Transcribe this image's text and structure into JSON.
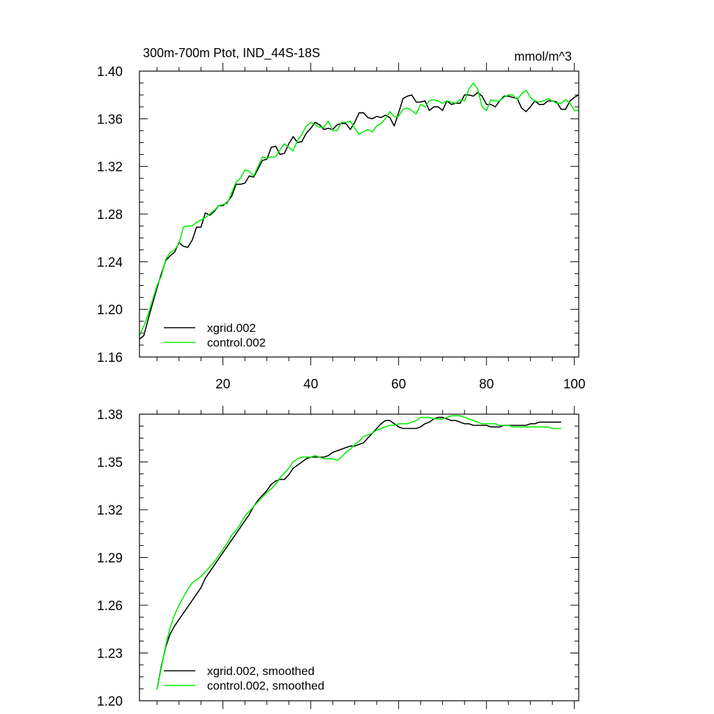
{
  "chart_data": [
    {
      "type": "line",
      "title": "300m-700m Ptot, IND_44S-18S",
      "units": "mmol/m^3",
      "xlabel": "",
      "ylabel": "",
      "xlim": [
        1,
        101
      ],
      "ylim": [
        1.16,
        1.4
      ],
      "xticks": [
        20,
        40,
        60,
        80,
        100
      ],
      "xtick_labels": [
        "20",
        "40",
        "60",
        "80",
        "100"
      ],
      "yticks": [
        1.16,
        1.2,
        1.24,
        1.28,
        1.32,
        1.36,
        1.4
      ],
      "ytick_labels": [
        "1.16",
        "1.20",
        "1.24",
        "1.28",
        "1.32",
        "1.36",
        "1.40"
      ],
      "grid": false,
      "legend_position": "bottom-left",
      "series": [
        {
          "name": "xgrid.002",
          "color": "#000000",
          "x": [
            1,
            2,
            3,
            4,
            5,
            6,
            7,
            8,
            9,
            10,
            11,
            12,
            13,
            14,
            15,
            16,
            17,
            18,
            19,
            20,
            21,
            22,
            23,
            24,
            25,
            26,
            27,
            28,
            29,
            30,
            31,
            32,
            33,
            34,
            35,
            36,
            37,
            38,
            39,
            40,
            41,
            42,
            43,
            44,
            45,
            46,
            47,
            48,
            49,
            50,
            51,
            52,
            53,
            54,
            55,
            56,
            57,
            58,
            59,
            60,
            61,
            62,
            63,
            64,
            65,
            66,
            67,
            68,
            69,
            70,
            71,
            72,
            73,
            74,
            75,
            76,
            77,
            78,
            79,
            80,
            81,
            82,
            83,
            84,
            85,
            86,
            87,
            88,
            89,
            90,
            91,
            92,
            93,
            94,
            95,
            96,
            97,
            98,
            99,
            100,
            101
          ],
          "values": [
            1.175,
            1.178,
            1.192,
            1.205,
            1.218,
            1.23,
            1.241,
            1.245,
            1.248,
            1.256,
            1.253,
            1.252,
            1.258,
            1.269,
            1.269,
            1.281,
            1.279,
            1.282,
            1.287,
            1.287,
            1.29,
            1.295,
            1.305,
            1.305,
            1.306,
            1.312,
            1.311,
            1.318,
            1.325,
            1.326,
            1.336,
            1.337,
            1.33,
            1.331,
            1.339,
            1.345,
            1.34,
            1.341,
            1.348,
            1.352,
            1.357,
            1.355,
            1.351,
            1.352,
            1.351,
            1.355,
            1.356,
            1.356,
            1.351,
            1.357,
            1.365,
            1.365,
            1.361,
            1.36,
            1.362,
            1.361,
            1.363,
            1.361,
            1.354,
            1.365,
            1.377,
            1.379,
            1.38,
            1.374,
            1.374,
            1.375,
            1.367,
            1.37,
            1.37,
            1.367,
            1.375,
            1.372,
            1.373,
            1.373,
            1.38,
            1.38,
            1.379,
            1.382,
            1.379,
            1.372,
            1.372,
            1.37,
            1.375,
            1.379,
            1.379,
            1.378,
            1.377,
            1.369,
            1.366,
            1.37,
            1.375,
            1.372,
            1.372,
            1.375,
            1.375,
            1.374,
            1.368,
            1.368,
            1.375,
            1.378,
            1.38
          ]
        },
        {
          "name": "control.002",
          "color": "#00ee00",
          "x": [
            1,
            2,
            3,
            4,
            5,
            6,
            7,
            8,
            9,
            10,
            11,
            12,
            13,
            14,
            15,
            16,
            17,
            18,
            19,
            20,
            21,
            22,
            23,
            24,
            25,
            26,
            27,
            28,
            29,
            30,
            31,
            32,
            33,
            34,
            35,
            36,
            37,
            38,
            39,
            40,
            41,
            42,
            43,
            44,
            45,
            46,
            47,
            48,
            49,
            50,
            51,
            52,
            53,
            54,
            55,
            56,
            57,
            58,
            59,
            60,
            61,
            62,
            63,
            64,
            65,
            66,
            67,
            68,
            69,
            70,
            71,
            72,
            73,
            74,
            75,
            76,
            77,
            78,
            79,
            80,
            81,
            82,
            83,
            84,
            85,
            86,
            87,
            88,
            89,
            90,
            91,
            92,
            93,
            94,
            95,
            96,
            97,
            98,
            99,
            100,
            101
          ],
          "values": [
            1.178,
            1.186,
            1.196,
            1.208,
            1.22,
            1.228,
            1.242,
            1.248,
            1.25,
            1.255,
            1.269,
            1.27,
            1.27,
            1.273,
            1.275,
            1.277,
            1.28,
            1.283,
            1.287,
            1.288,
            1.289,
            1.298,
            1.307,
            1.31,
            1.317,
            1.316,
            1.312,
            1.32,
            1.328,
            1.327,
            1.328,
            1.328,
            1.334,
            1.339,
            1.336,
            1.333,
            1.342,
            1.347,
            1.354,
            1.357,
            1.355,
            1.353,
            1.353,
            1.358,
            1.35,
            1.35,
            1.357,
            1.357,
            1.358,
            1.352,
            1.347,
            1.349,
            1.351,
            1.349,
            1.354,
            1.356,
            1.36,
            1.366,
            1.362,
            1.362,
            1.368,
            1.369,
            1.367,
            1.364,
            1.372,
            1.37,
            1.375,
            1.376,
            1.375,
            1.373,
            1.375,
            1.374,
            1.373,
            1.376,
            1.375,
            1.385,
            1.39,
            1.385,
            1.37,
            1.367,
            1.376,
            1.375,
            1.375,
            1.378,
            1.38,
            1.38,
            1.376,
            1.381,
            1.384,
            1.378,
            1.375,
            1.374,
            1.375,
            1.377,
            1.375,
            1.373,
            1.373,
            1.376,
            1.373,
            1.367,
            1.367
          ]
        }
      ]
    },
    {
      "type": "line",
      "title": "",
      "xlabel": "",
      "ylabel": "",
      "xlim": [
        1,
        101
      ],
      "ylim": [
        1.2,
        1.38
      ],
      "xticks": [
        20,
        40,
        60,
        80,
        100
      ],
      "xtick_labels": [],
      "yticks": [
        1.2,
        1.23,
        1.26,
        1.29,
        1.32,
        1.35,
        1.38
      ],
      "ytick_labels": [
        "1.20",
        "1.23",
        "1.26",
        "1.29",
        "1.32",
        "1.35",
        "1.38"
      ],
      "grid": false,
      "legend_position": "bottom-left",
      "series": [
        {
          "name": "xgrid.002, smoothed",
          "color": "#000000",
          "x": [
            5,
            6,
            7,
            8,
            9,
            10,
            11,
            12,
            13,
            14,
            15,
            16,
            17,
            18,
            19,
            20,
            21,
            22,
            23,
            24,
            25,
            26,
            27,
            28,
            29,
            30,
            31,
            32,
            33,
            34,
            35,
            36,
            37,
            38,
            39,
            40,
            41,
            42,
            43,
            44,
            45,
            46,
            47,
            48,
            49,
            50,
            51,
            52,
            53,
            54,
            55,
            56,
            57,
            58,
            59,
            60,
            61,
            62,
            63,
            64,
            65,
            66,
            67,
            68,
            69,
            70,
            71,
            72,
            73,
            74,
            75,
            76,
            77,
            78,
            79,
            80,
            81,
            82,
            83,
            84,
            85,
            86,
            87,
            88,
            89,
            90,
            91,
            92,
            93,
            94,
            95,
            96,
            97
          ],
          "values": [
            1.207,
            1.222,
            1.234,
            1.242,
            1.247,
            1.251,
            1.255,
            1.259,
            1.263,
            1.267,
            1.271,
            1.277,
            1.281,
            1.285,
            1.289,
            1.293,
            1.297,
            1.301,
            1.305,
            1.309,
            1.313,
            1.317,
            1.322,
            1.326,
            1.329,
            1.332,
            1.336,
            1.338,
            1.339,
            1.339,
            1.342,
            1.346,
            1.348,
            1.35,
            1.352,
            1.353,
            1.353,
            1.353,
            1.353,
            1.354,
            1.356,
            1.357,
            1.358,
            1.359,
            1.36,
            1.36,
            1.361,
            1.362,
            1.365,
            1.368,
            1.371,
            1.374,
            1.376,
            1.376,
            1.374,
            1.372,
            1.371,
            1.371,
            1.371,
            1.371,
            1.372,
            1.374,
            1.375,
            1.377,
            1.378,
            1.378,
            1.377,
            1.376,
            1.376,
            1.375,
            1.374,
            1.374,
            1.373,
            1.373,
            1.373,
            1.373,
            1.372,
            1.372,
            1.372,
            1.373,
            1.373,
            1.373,
            1.373,
            1.373,
            1.373,
            1.374,
            1.374,
            1.375,
            1.375,
            1.375,
            1.375,
            1.375,
            1.375
          ]
        },
        {
          "name": "control.002, smoothed",
          "color": "#00ee00",
          "x": [
            5,
            6,
            7,
            8,
            9,
            10,
            11,
            12,
            13,
            14,
            15,
            16,
            17,
            18,
            19,
            20,
            21,
            22,
            23,
            24,
            25,
            26,
            27,
            28,
            29,
            30,
            31,
            32,
            33,
            34,
            35,
            36,
            37,
            38,
            39,
            40,
            41,
            42,
            43,
            44,
            45,
            46,
            47,
            48,
            49,
            50,
            51,
            52,
            53,
            54,
            55,
            56,
            57,
            58,
            59,
            60,
            61,
            62,
            63,
            64,
            65,
            66,
            67,
            68,
            69,
            70,
            71,
            72,
            73,
            74,
            75,
            76,
            77,
            78,
            79,
            80,
            81,
            82,
            83,
            84,
            85,
            86,
            87,
            88,
            89,
            90,
            91,
            92,
            93,
            94,
            95,
            96,
            97
          ],
          "values": [
            1.207,
            1.221,
            1.235,
            1.246,
            1.254,
            1.26,
            1.265,
            1.27,
            1.274,
            1.276,
            1.278,
            1.281,
            1.284,
            1.287,
            1.291,
            1.295,
            1.299,
            1.304,
            1.307,
            1.311,
            1.316,
            1.319,
            1.322,
            1.325,
            1.328,
            1.331,
            1.333,
            1.336,
            1.34,
            1.343,
            1.346,
            1.35,
            1.352,
            1.353,
            1.353,
            1.353,
            1.354,
            1.353,
            1.352,
            1.352,
            1.352,
            1.351,
            1.353,
            1.356,
            1.358,
            1.361,
            1.363,
            1.366,
            1.367,
            1.368,
            1.37,
            1.371,
            1.372,
            1.373,
            1.373,
            1.374,
            1.374,
            1.374,
            1.375,
            1.376,
            1.378,
            1.378,
            1.378,
            1.377,
            1.377,
            1.377,
            1.378,
            1.379,
            1.379,
            1.379,
            1.378,
            1.377,
            1.376,
            1.375,
            1.374,
            1.374,
            1.374,
            1.374,
            1.373,
            1.373,
            1.373,
            1.372,
            1.372,
            1.372,
            1.372,
            1.372,
            1.372,
            1.372,
            1.372,
            1.372,
            1.371,
            1.371,
            1.371
          ]
        }
      ]
    }
  ]
}
